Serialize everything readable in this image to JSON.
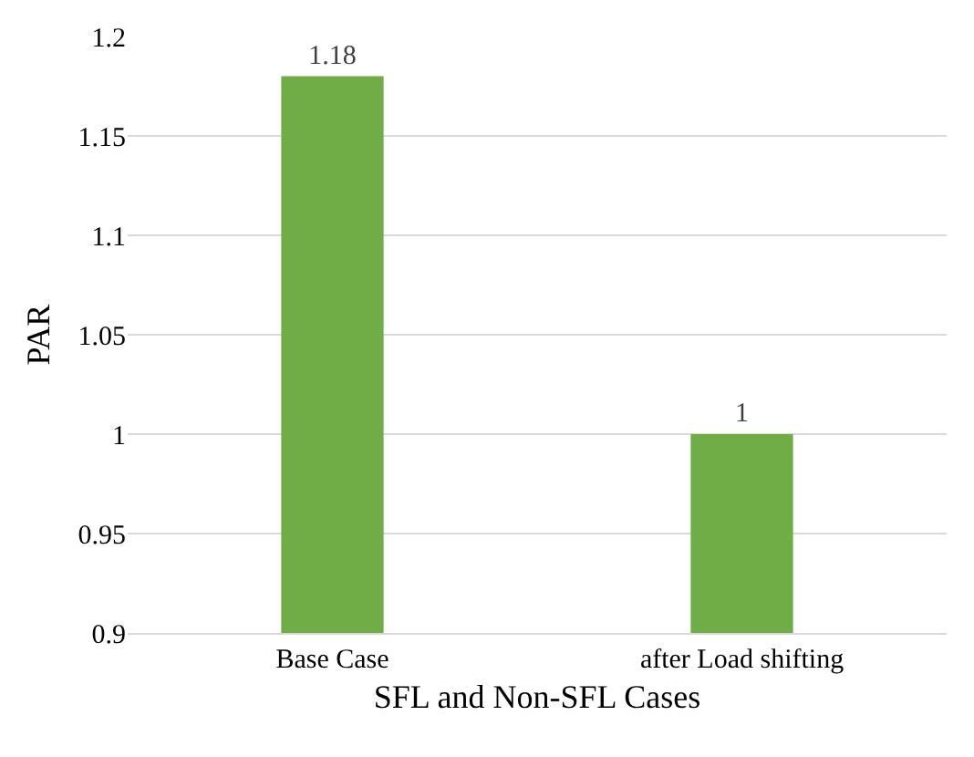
{
  "chart_data": {
    "type": "bar",
    "xlabel": "SFL and Non-SFL Cases",
    "ylabel": "PAR",
    "categories": [
      "Base Case",
      "after Load shifting"
    ],
    "values": [
      1.18,
      1
    ],
    "color": "#70ad47",
    "ylim": [
      0.9,
      1.2
    ],
    "yticks": [
      0.9,
      0.95,
      1,
      1.05,
      1.1,
      1.15,
      1.2
    ],
    "grid": "y",
    "data_labels": true
  }
}
